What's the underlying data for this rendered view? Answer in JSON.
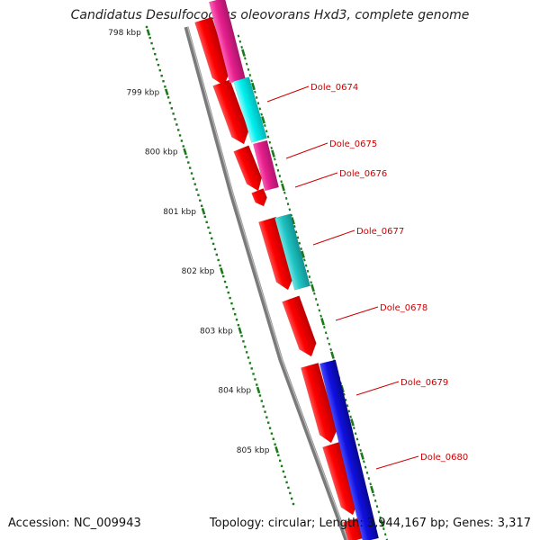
{
  "title": "Candidatus Desulfococcus oleovorans Hxd3, complete genome",
  "footer": {
    "accession": "Accession: NC_009943",
    "stats": "Topology: circular; Length: 3,944,167 bp; Genes: 3,317"
  },
  "scale": {
    "unit_kbp": [
      "798 kbp",
      "799 kbp",
      "800 kbp",
      "801 kbp",
      "802 kbp",
      "803 kbp",
      "804 kbp",
      "805 kbp"
    ]
  },
  "genes": [
    {
      "label": "Dole_0674"
    },
    {
      "label": "Dole_0675"
    },
    {
      "label": "Dole_0676"
    },
    {
      "label": "Dole_0677"
    },
    {
      "label": "Dole_0678"
    },
    {
      "label": "Dole_0679"
    },
    {
      "label": "Dole_0680"
    }
  ],
  "colors": {
    "cds": "#ff0000",
    "magenta": "#e8208e",
    "cyan": "#00e8e8",
    "teal": "#18c8c8",
    "blue": "#1010e0",
    "backbone": "#777777",
    "ticks": "#1a7a1a",
    "label": "#cc0000"
  }
}
